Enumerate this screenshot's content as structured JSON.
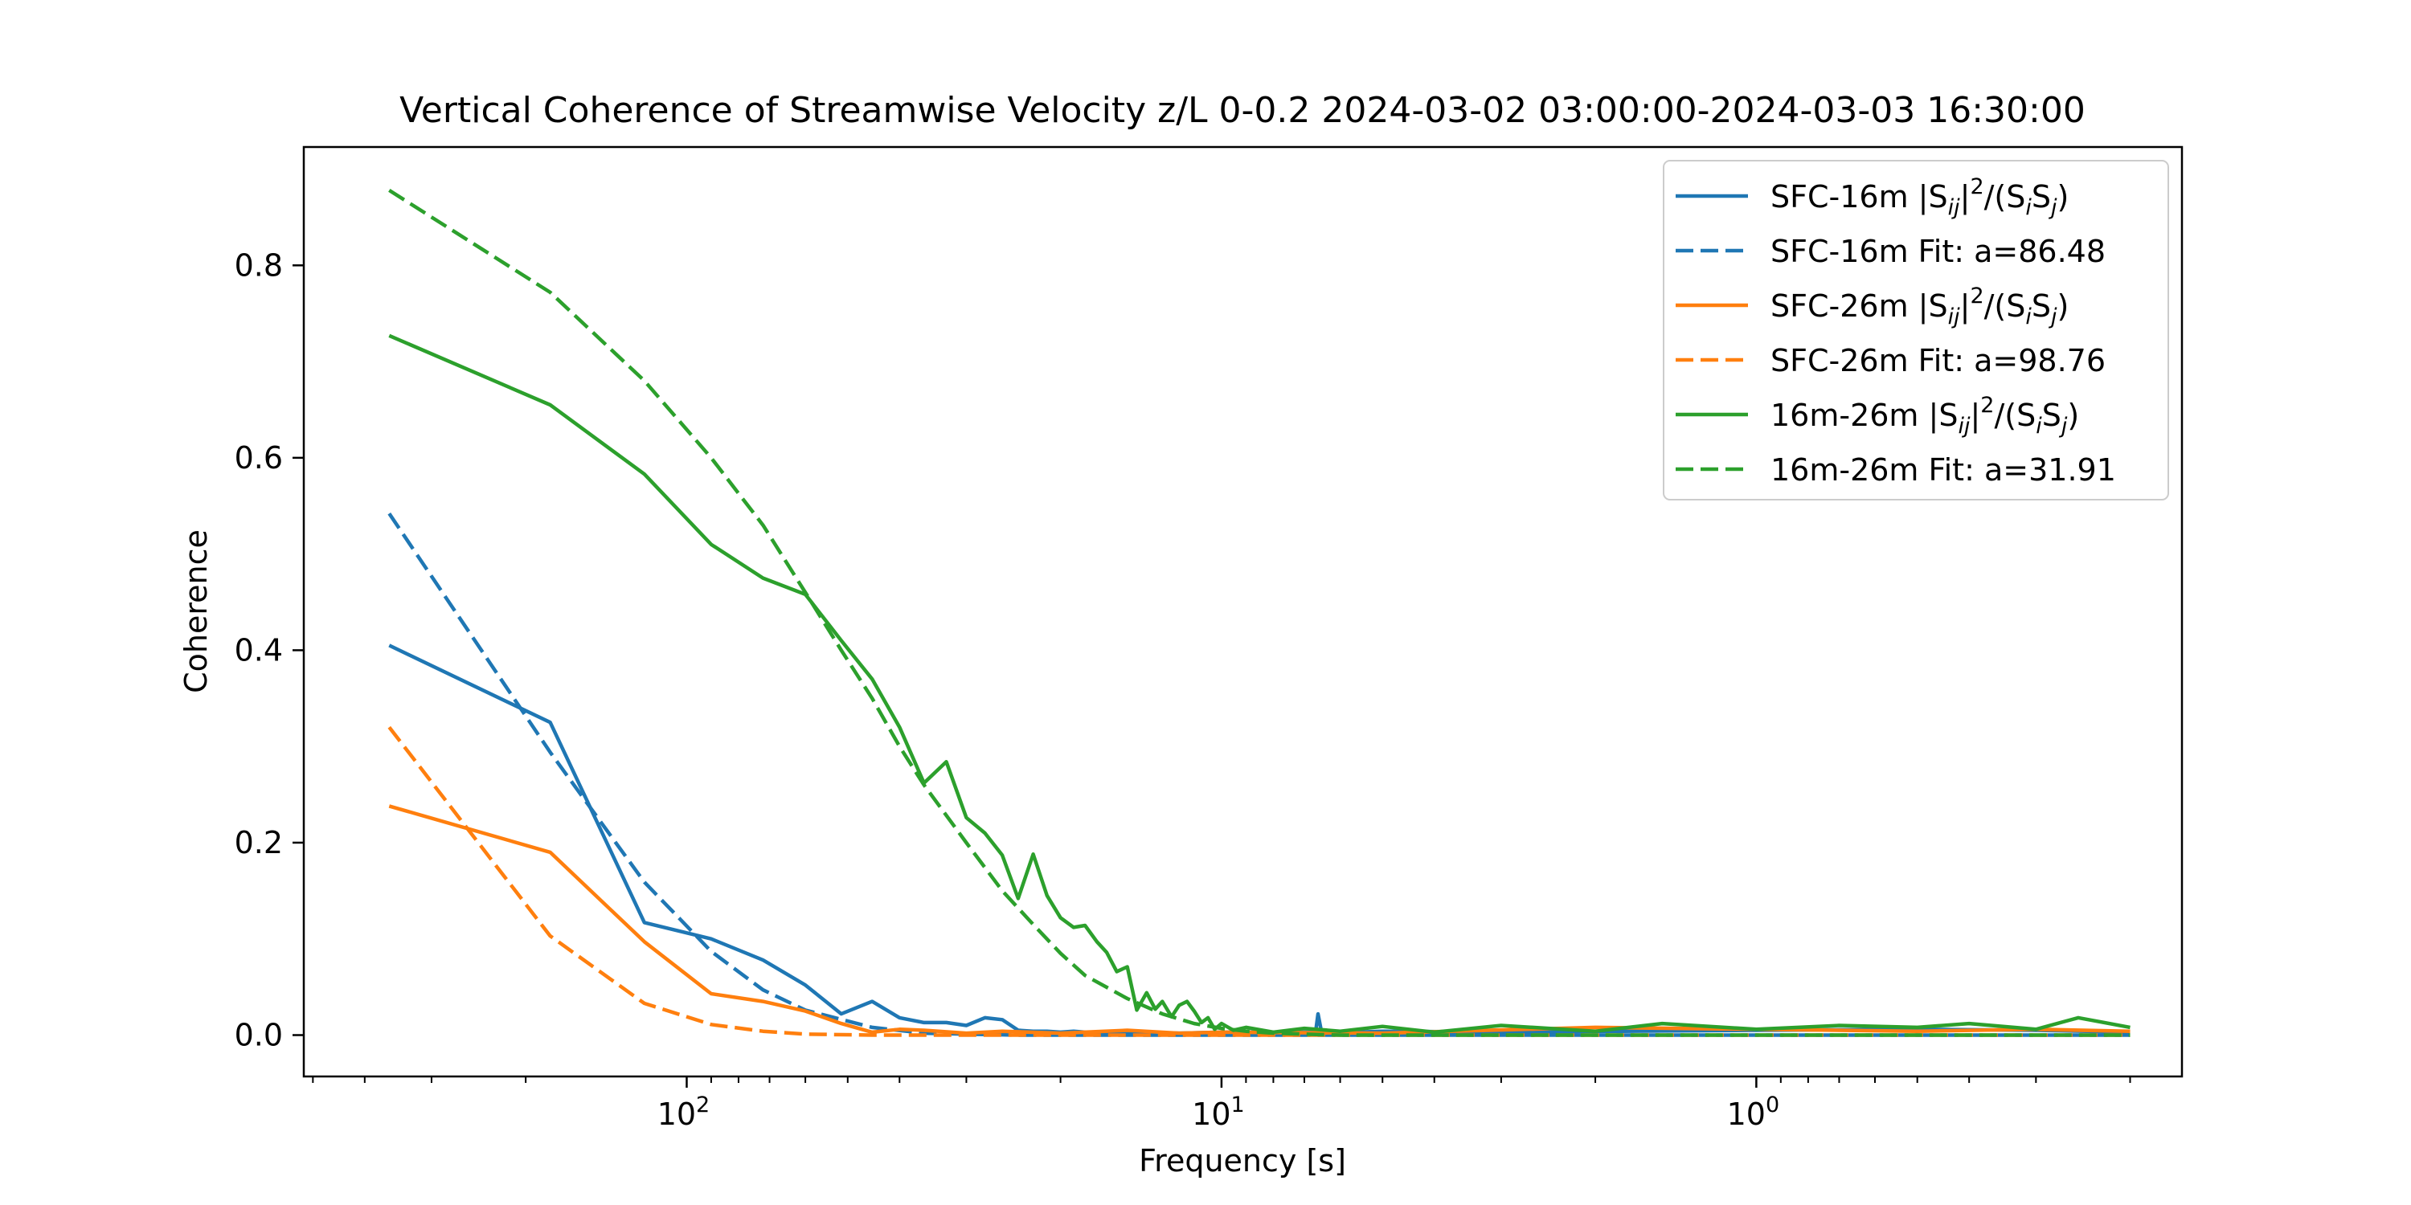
{
  "chart_data": {
    "type": "line",
    "title": "Vertical Coherence of Streamwise Velocity z/L 0-0.2 2024-03-02 03:00:00-2024-03-03 16:30:00",
    "xlabel": "Frequency [s]",
    "ylabel": "Coherence",
    "x_scale": "log",
    "x_reversed": true,
    "xlim": [
      520,
      0.16
    ],
    "ylim": [
      -0.043,
      0.923
    ],
    "x_ticks": [
      {
        "value": 100,
        "label": "10²",
        "base": "10",
        "exp": "2"
      },
      {
        "value": 10,
        "label": "10¹",
        "base": "10",
        "exp": "1"
      },
      {
        "value": 1,
        "label": "10⁰",
        "base": "10",
        "exp": "0"
      }
    ],
    "y_ticks": [
      0.0,
      0.2,
      0.4,
      0.6,
      0.8
    ],
    "y_tick_labels": [
      "0.0",
      "0.2",
      "0.4",
      "0.6",
      "0.8"
    ],
    "grid": false,
    "legend_position": "top-right",
    "series": [
      {
        "name": "SFC-16m |Sij|²/(SiSj)",
        "legend": {
          "pre": "SFC-16m |S",
          "sub1": "ij",
          "mid1": "|",
          "sup": "2",
          "mid2": "/(S",
          "sub2": "i",
          "mid3": "S",
          "sub3": "j",
          "post": ")"
        },
        "color": "#1f77b4",
        "dash": "solid",
        "x": [
          360,
          180,
          120,
          90,
          72,
          60,
          51.4,
          45,
          40,
          36,
          32.7,
          30,
          27.7,
          25.7,
          24,
          22.5,
          21.2,
          20,
          18.9,
          18,
          15,
          12,
          10,
          8,
          6.67,
          6.6,
          6.5,
          6.4,
          5,
          3,
          1,
          0.5,
          0.3,
          0.2
        ],
        "y": [
          0.405,
          0.325,
          0.117,
          0.1,
          0.078,
          0.052,
          0.022,
          0.035,
          0.018,
          0.013,
          0.013,
          0.01,
          0.018,
          0.016,
          0.005,
          0.004,
          0.004,
          0.003,
          0.004,
          0.003,
          0.003,
          0.002,
          0.003,
          0.003,
          0.003,
          0.022,
          0.003,
          0.002,
          0.004,
          0.003,
          0.005,
          0.006,
          0.005,
          0.003
        ]
      },
      {
        "name": "SFC-16m Fit: a=86.48",
        "color": "#1f77b4",
        "dash": "dashed",
        "x": [
          360,
          180,
          120,
          90,
          72,
          60,
          45,
          36,
          30,
          24,
          18,
          15,
          12,
          10,
          5,
          1,
          0.2
        ],
        "y": [
          0.542,
          0.294,
          0.159,
          0.087,
          0.047,
          0.026,
          0.008,
          0.002,
          0.001,
          0.0,
          0.0,
          0.0,
          0.0,
          0.0,
          0.0,
          0.0,
          0.0
        ]
      },
      {
        "name": "SFC-26m |Sij|²/(SiSj)",
        "legend": {
          "pre": "SFC-26m |S",
          "sub1": "ij",
          "mid1": "|",
          "sup": "2",
          "mid2": "/(S",
          "sub2": "i",
          "mid3": "S",
          "sub3": "j",
          "post": ")"
        },
        "color": "#ff7f0e",
        "dash": "solid",
        "x": [
          360,
          180,
          120,
          90,
          72,
          60,
          51.4,
          45,
          40,
          36,
          30,
          25.7,
          20,
          15,
          12,
          10,
          5,
          2,
          1,
          0.5,
          0.3,
          0.2
        ],
        "y": [
          0.238,
          0.19,
          0.097,
          0.043,
          0.035,
          0.025,
          0.012,
          0.003,
          0.006,
          0.005,
          0.002,
          0.004,
          0.002,
          0.005,
          0.002,
          0.003,
          0.002,
          0.008,
          0.006,
          0.004,
          0.006,
          0.004
        ]
      },
      {
        "name": "SFC-26m Fit: a=98.76",
        "color": "#ff7f0e",
        "dash": "dashed",
        "x": [
          360,
          180,
          120,
          90,
          72,
          60,
          45,
          36,
          30,
          24,
          18,
          12,
          10,
          5,
          1,
          0.2
        ],
        "y": [
          0.32,
          0.103,
          0.033,
          0.011,
          0.004,
          0.001,
          0.0,
          0.0,
          0.0,
          0.0,
          0.0,
          0.0,
          0.0,
          0.0,
          0.0,
          0.0
        ]
      },
      {
        "name": "16m-26m |Sij|²/(SiSj)",
        "legend": {
          "pre": "16m-26m |S",
          "sub1": "ij",
          "mid1": "|",
          "sup": "2",
          "mid2": "/(S",
          "sub2": "i",
          "mid3": "S",
          "sub3": "j",
          "post": ")"
        },
        "color": "#2ca02c",
        "dash": "solid",
        "x": [
          360,
          180,
          120,
          90,
          72,
          60,
          51.4,
          45,
          40,
          36,
          32.7,
          30,
          27.7,
          25.7,
          24,
          22.5,
          21.2,
          20,
          18.9,
          18,
          17.1,
          16.4,
          15.7,
          15,
          14.4,
          13.8,
          13.3,
          12.9,
          12.4,
          12,
          11.6,
          11.25,
          10.9,
          10.6,
          10.3,
          10,
          9.5,
          9,
          8,
          7,
          6,
          5,
          4,
          3,
          2,
          1.5,
          1,
          0.7,
          0.5,
          0.4,
          0.3,
          0.25,
          0.2
        ],
        "y": [
          0.727,
          0.655,
          0.583,
          0.51,
          0.475,
          0.458,
          0.41,
          0.37,
          0.32,
          0.262,
          0.284,
          0.226,
          0.21,
          0.187,
          0.142,
          0.188,
          0.145,
          0.122,
          0.112,
          0.114,
          0.097,
          0.086,
          0.066,
          0.071,
          0.026,
          0.044,
          0.027,
          0.035,
          0.019,
          0.031,
          0.035,
          0.025,
          0.013,
          0.018,
          0.006,
          0.012,
          0.005,
          0.008,
          0.003,
          0.007,
          0.004,
          0.009,
          0.003,
          0.01,
          0.004,
          0.012,
          0.006,
          0.01,
          0.008,
          0.012,
          0.006,
          0.018,
          0.008
        ]
      },
      {
        "name": "16m-26m Fit: a=31.91",
        "color": "#2ca02c",
        "dash": "dashed",
        "x": [
          360,
          180,
          120,
          90,
          72,
          60,
          51.4,
          45,
          40,
          36,
          30,
          25.7,
          22.5,
          20,
          18,
          15,
          12.9,
          11.25,
          10,
          9,
          8,
          7,
          6,
          5,
          4,
          3,
          1,
          0.2
        ],
        "y": [
          0.878,
          0.772,
          0.68,
          0.6,
          0.53,
          0.46,
          0.4,
          0.35,
          0.3,
          0.26,
          0.2,
          0.15,
          0.115,
          0.085,
          0.062,
          0.038,
          0.022,
          0.012,
          0.007,
          0.004,
          0.002,
          0.001,
          0.0,
          0.0,
          0.0,
          0.0,
          0.0,
          0.0
        ]
      }
    ]
  }
}
